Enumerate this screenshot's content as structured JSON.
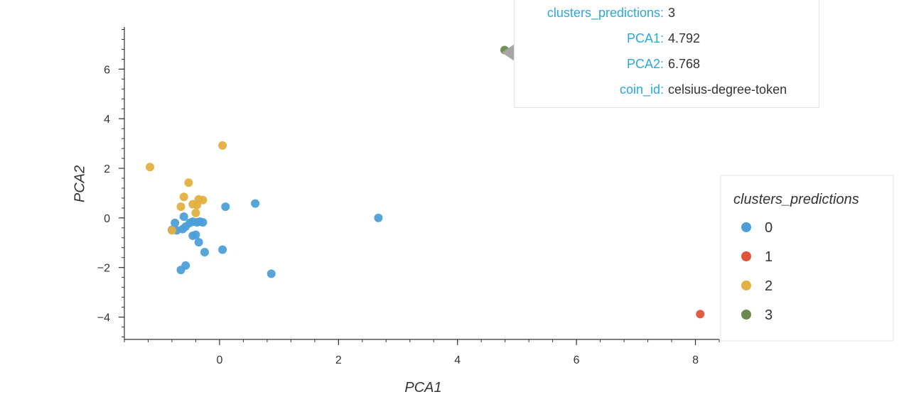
{
  "chart_data": {
    "type": "scatter",
    "title": "",
    "xlabel": "PCA1",
    "ylabel": "PCA2",
    "xlim": [
      -1.6,
      8.4
    ],
    "ylim": [
      -4.9,
      7.7
    ],
    "x_ticks": [
      0,
      2,
      4,
      6,
      8
    ],
    "y_ticks": [
      -4,
      -2,
      0,
      2,
      4,
      6
    ],
    "x_tick_labels": [
      "0",
      "2",
      "4",
      "6",
      "8"
    ],
    "y_tick_labels": [
      "−4",
      "−2",
      "0",
      "2",
      "4",
      "6"
    ],
    "legend": {
      "title": "clusters_predictions",
      "placement": "right"
    },
    "series": [
      {
        "name": "0",
        "color": "#4c9fd8",
        "points": [
          [
            0.1,
            0.45
          ],
          [
            0.6,
            0.58
          ],
          [
            2.67,
            0.0
          ],
          [
            -0.75,
            -0.2
          ],
          [
            -0.8,
            -0.48
          ],
          [
            -0.72,
            -0.5
          ],
          [
            -0.6,
            0.05
          ],
          [
            -0.62,
            -0.45
          ],
          [
            -0.57,
            -0.35
          ],
          [
            -0.5,
            -0.2
          ],
          [
            -0.45,
            -0.15
          ],
          [
            -0.38,
            -0.18
          ],
          [
            -0.33,
            -0.15
          ],
          [
            -0.28,
            -0.18
          ],
          [
            -0.45,
            -0.72
          ],
          [
            -0.4,
            -0.68
          ],
          [
            -0.35,
            -0.98
          ],
          [
            -0.25,
            -1.38
          ],
          [
            0.05,
            -1.28
          ],
          [
            -0.65,
            -2.1
          ],
          [
            -0.57,
            -1.92
          ],
          [
            0.87,
            -2.25
          ]
        ]
      },
      {
        "name": "1",
        "color": "#e2533a",
        "points": [
          [
            8.08,
            -3.88
          ]
        ]
      },
      {
        "name": "2",
        "color": "#e3b041",
        "points": [
          [
            -1.17,
            2.05
          ],
          [
            0.05,
            2.92
          ],
          [
            -0.52,
            1.42
          ],
          [
            -0.6,
            0.85
          ],
          [
            -0.65,
            0.45
          ],
          [
            -0.45,
            0.55
          ],
          [
            -0.38,
            0.52
          ],
          [
            -0.35,
            0.75
          ],
          [
            -0.28,
            0.72
          ],
          [
            -0.4,
            0.2
          ],
          [
            -0.8,
            -0.5
          ]
        ]
      },
      {
        "name": "3",
        "color": "#6a8a4e",
        "points": [
          [
            4.792,
            6.768
          ]
        ]
      }
    ]
  },
  "tooltip": {
    "rows": [
      {
        "key": "clusters_predictions:",
        "value": "3"
      },
      {
        "key": "PCA1:",
        "value": "4.792"
      },
      {
        "key": "PCA2:",
        "value": "6.768"
      },
      {
        "key": "coin_id:",
        "value": "celsius-degree-token"
      }
    ]
  }
}
